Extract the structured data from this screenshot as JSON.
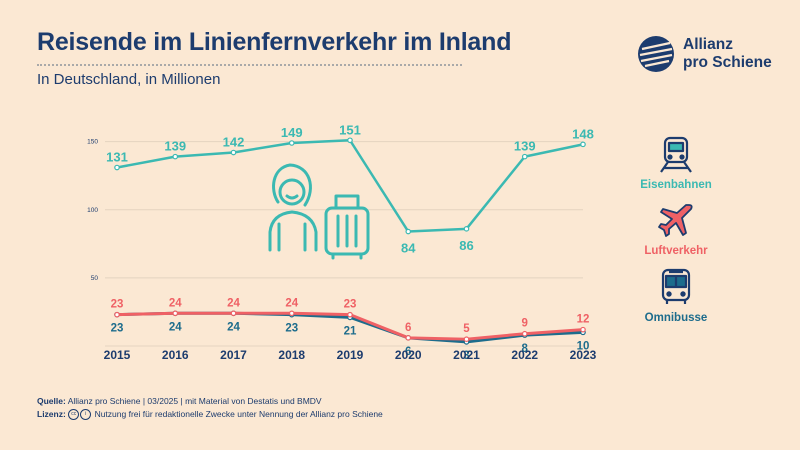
{
  "title": "Reisende im Linienfernverkehr im Inland",
  "subtitle": "In Deutschland, in Millionen",
  "brand": {
    "line1": "Allianz",
    "line2": "pro Schiene"
  },
  "footer": {
    "source_label": "Quelle:",
    "source_text": "Allianz pro Schiene | 03/2025 | mit Material von Destatis und BMDV",
    "license_label": "Lizenz:",
    "license_text": "Nutzung frei für redaktionelle Zwecke unter Nennung der Allianz pro Schiene"
  },
  "legend": {
    "rail": "Eisenbahnen",
    "air": "Luftverkehr",
    "bus": "Omnibusse"
  },
  "icons": {
    "rail": "train-icon",
    "air": "airplane-icon",
    "bus": "bus-icon",
    "illustration": "traveler-with-suitcase-icon",
    "logo": "allianz-pro-schiene-logo"
  },
  "colors": {
    "background": "#fbe8d3",
    "title": "#1d3c6e",
    "rail": "#3bb9b2",
    "air": "#ef6165",
    "bus": "#1d6c8c",
    "grid": "#e4d3c0"
  },
  "chart_data": {
    "type": "line",
    "x": [
      "2015",
      "2016",
      "2017",
      "2018",
      "2019",
      "2020",
      "2021",
      "2022",
      "2023"
    ],
    "yticks": [
      50,
      100,
      150
    ],
    "ylim": [
      0,
      160
    ],
    "grid": true,
    "series": [
      {
        "name": "Eisenbahnen",
        "key": "rail",
        "values": [
          131,
          139,
          142,
          149,
          151,
          84,
          86,
          139,
          148
        ]
      },
      {
        "name": "Luftverkehr",
        "key": "air",
        "values": [
          23,
          24,
          24,
          24,
          23,
          6,
          5,
          9,
          12
        ]
      },
      {
        "name": "Omnibusse",
        "key": "bus",
        "values": [
          23,
          24,
          24,
          23,
          21,
          6,
          3,
          8,
          10
        ]
      }
    ]
  }
}
